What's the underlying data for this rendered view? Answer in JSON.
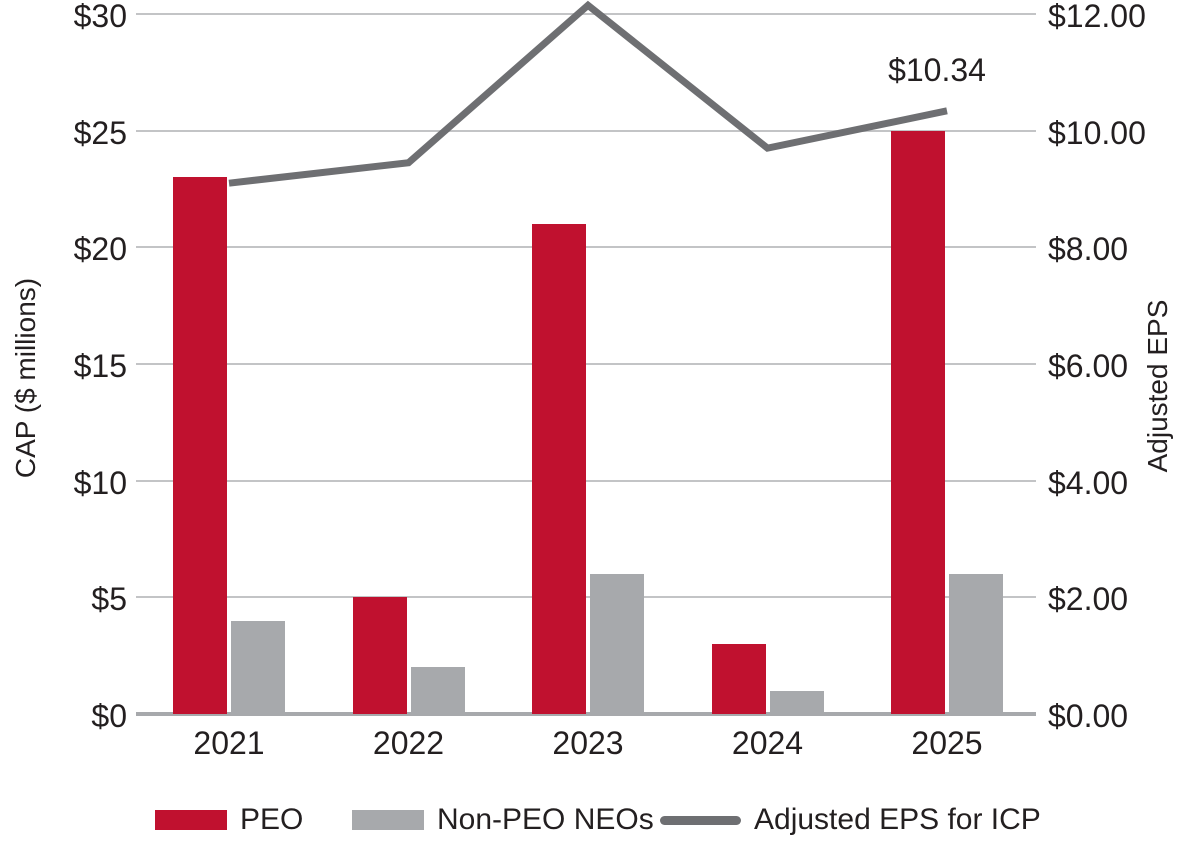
{
  "chart_data": {
    "type": "bar",
    "subtype": "grouped-bar-with-line-overlay",
    "categories": [
      "2021",
      "2022",
      "2023",
      "2024",
      "2025"
    ],
    "bar_series": [
      {
        "name": "PEO",
        "axis": "left",
        "color": "#c0112f",
        "values": [
          23,
          5,
          21,
          3,
          25
        ]
      },
      {
        "name": "Non-PEO NEOs",
        "axis": "left",
        "color": "#a7a9ac",
        "values": [
          4,
          2,
          6,
          1,
          6
        ]
      }
    ],
    "line_series": [
      {
        "name": "Adjusted EPS for ICP",
        "axis": "right",
        "color": "#6e6f72",
        "values": [
          9.1,
          9.45,
          12.15,
          9.7,
          10.34
        ]
      }
    ],
    "left_axis": {
      "label": "CAP ($ millions)",
      "min": 0,
      "max": 30,
      "step": 5,
      "ticks": [
        "$0",
        "$5",
        "$10",
        "$15",
        "$20",
        "$25",
        "$30"
      ]
    },
    "right_axis": {
      "label": "Adjusted EPS",
      "min": 0,
      "max": 12,
      "step": 2,
      "ticks": [
        "$0.00",
        "$2.00",
        "$4.00",
        "$6.00",
        "$8.00",
        "$10.00",
        "$12.00"
      ]
    },
    "annotation": {
      "text": "$10.34",
      "category": "2025",
      "series": "Adjusted EPS for ICP"
    },
    "grid": "horizontal gridlines on",
    "legend_position": "bottom",
    "colors": {
      "grid": "#c3c4c6",
      "baseline": "#a7a9ac",
      "text": "#231f20",
      "background": "#ffffff"
    }
  }
}
